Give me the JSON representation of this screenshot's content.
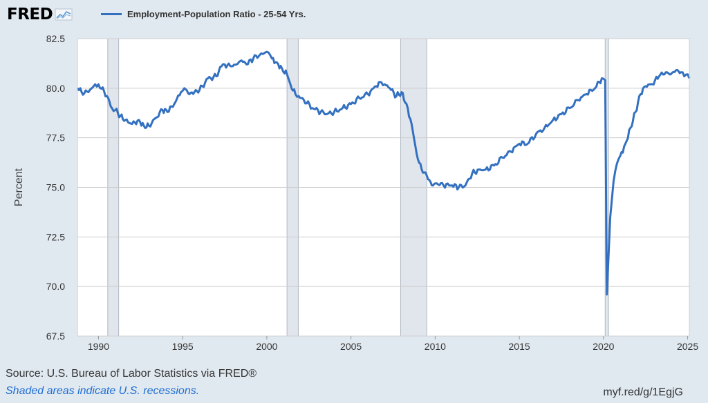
{
  "header": {
    "logo_text": "FRED",
    "logo_icon": "line-chart-icon",
    "series_label": "Employment-Population Ratio - 25-54 Yrs."
  },
  "colors": {
    "background": "#e1e9f0",
    "plot_background": "#ffffff",
    "line": "#3370c0",
    "recession_shade": "#e1e5ec",
    "gridline": "#cccccc"
  },
  "footer": {
    "source": "Source: U.S. Bureau of Labor Statistics via FRED®",
    "recession_note": "Shaded areas indicate U.S. recessions.",
    "short_url": "myf.red/g/1EgjG"
  },
  "chart_data": {
    "type": "line",
    "title": "",
    "xlabel": "",
    "ylabel": "Percent",
    "xlim": [
      1988.75,
      2025.1
    ],
    "ylim": [
      67.5,
      82.5
    ],
    "x_ticks": [
      1990,
      1995,
      2000,
      2005,
      2010,
      2015,
      2020,
      2025
    ],
    "y_ticks": [
      67.5,
      70.0,
      72.5,
      75.0,
      77.5,
      80.0,
      82.5
    ],
    "grid": "horizontal",
    "legend": "top-left",
    "recessions": [
      [
        1990.55,
        1991.2
      ],
      [
        2001.2,
        2001.87
      ],
      [
        2007.95,
        2009.5
      ],
      [
        2020.1,
        2020.3
      ]
    ],
    "series": [
      {
        "name": "Employment-Population Ratio - 25-54 Yrs.",
        "x": [
          1988.75,
          1989.0,
          1989.4,
          1989.6,
          1989.8,
          1990.0,
          1990.5,
          1990.8,
          1991.0,
          1991.3,
          1991.6,
          1992.0,
          1992.4,
          1992.7,
          1993.0,
          1993.4,
          1993.8,
          1994.1,
          1994.5,
          1994.9,
          1995.1,
          1995.4,
          1995.7,
          1996.0,
          1996.5,
          1997.0,
          1997.3,
          1997.5,
          1997.9,
          1998.2,
          1998.5,
          1998.8,
          1999.2,
          1999.6,
          1999.9,
          2000.1,
          2000.3,
          2000.6,
          2000.9,
          2001.2,
          2001.4,
          2001.7,
          2001.9,
          2002.2,
          2002.7,
          2003.2,
          2003.6,
          2004.0,
          2004.5,
          2005.0,
          2005.5,
          2006.0,
          2006.5,
          2006.8,
          2007.0,
          2007.3,
          2007.7,
          2008.0,
          2008.3,
          2008.6,
          2008.9,
          2009.2,
          2009.5,
          2009.8,
          2010.1,
          2010.5,
          2011.0,
          2011.4,
          2011.8,
          2012.2,
          2012.6,
          2013.0,
          2013.5,
          2014.0,
          2014.5,
          2015.0,
          2015.5,
          2016.0,
          2016.5,
          2017.0,
          2017.5,
          2018.0,
          2018.5,
          2019.0,
          2019.5,
          2019.9,
          2020.1,
          2020.2,
          2020.3,
          2020.4,
          2020.6,
          2020.8,
          2021.0,
          2021.3,
          2021.6,
          2021.9,
          2022.2,
          2022.5,
          2022.9,
          2023.3,
          2023.7,
          2024.0,
          2024.3,
          2024.6,
          2024.8,
          2025.0,
          2025.1
        ],
        "values": [
          80.0,
          79.8,
          79.8,
          80.0,
          80.2,
          80.2,
          79.6,
          79.0,
          78.9,
          78.6,
          78.4,
          78.2,
          78.4,
          78.1,
          78.1,
          78.5,
          78.9,
          78.8,
          79.2,
          79.8,
          80.0,
          79.7,
          79.8,
          79.9,
          80.5,
          80.6,
          81.1,
          81.2,
          81.1,
          81.2,
          81.4,
          81.2,
          81.5,
          81.7,
          81.8,
          81.8,
          81.5,
          81.3,
          81.0,
          80.7,
          80.2,
          79.7,
          79.6,
          79.4,
          79.0,
          78.8,
          78.7,
          78.8,
          79.0,
          79.2,
          79.5,
          79.7,
          80.1,
          80.3,
          80.2,
          80.0,
          79.6,
          79.8,
          79.2,
          78.2,
          76.7,
          75.9,
          75.6,
          75.1,
          75.2,
          75.1,
          75.1,
          75.0,
          75.1,
          75.7,
          75.9,
          75.9,
          76.1,
          76.5,
          76.8,
          77.2,
          77.2,
          77.7,
          78.0,
          78.4,
          78.7,
          79.0,
          79.4,
          79.7,
          80.0,
          80.5,
          80.4,
          69.6,
          71.5,
          73.5,
          75.3,
          76.2,
          76.6,
          77.2,
          78.0,
          78.8,
          79.7,
          80.1,
          80.2,
          80.6,
          80.8,
          80.7,
          80.9,
          80.8,
          80.6,
          80.7,
          80.5
        ]
      }
    ]
  }
}
